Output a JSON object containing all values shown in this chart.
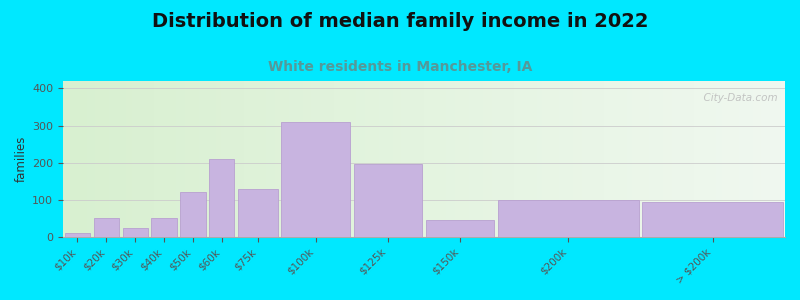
{
  "categories": [
    "$10k",
    "$20k",
    "$30k",
    "$40k",
    "$50k",
    "$60k",
    "$75k",
    "$100k",
    "$125k",
    "$150k",
    "$200k",
    "> $200k"
  ],
  "values": [
    10,
    50,
    25,
    50,
    120,
    210,
    130,
    310,
    195,
    45,
    100,
    95
  ],
  "bin_edges": [
    0,
    10,
    20,
    30,
    40,
    50,
    60,
    75,
    100,
    125,
    150,
    200,
    250
  ],
  "bar_color": "#c8b4e0",
  "bar_edgecolor": "#b8a0d0",
  "title": "Distribution of median family income in 2022",
  "subtitle": "White residents in Manchester, IA",
  "ylabel": "families",
  "ylim": [
    0,
    420
  ],
  "yticks": [
    0,
    100,
    200,
    300,
    400
  ],
  "background_outer": "#00e8ff",
  "background_inner_left": "#d8f0d0",
  "background_inner_right": "#f0f8f0",
  "title_fontsize": 14,
  "subtitle_fontsize": 10,
  "subtitle_color": "#559999",
  "watermark": "  City-Data.com"
}
